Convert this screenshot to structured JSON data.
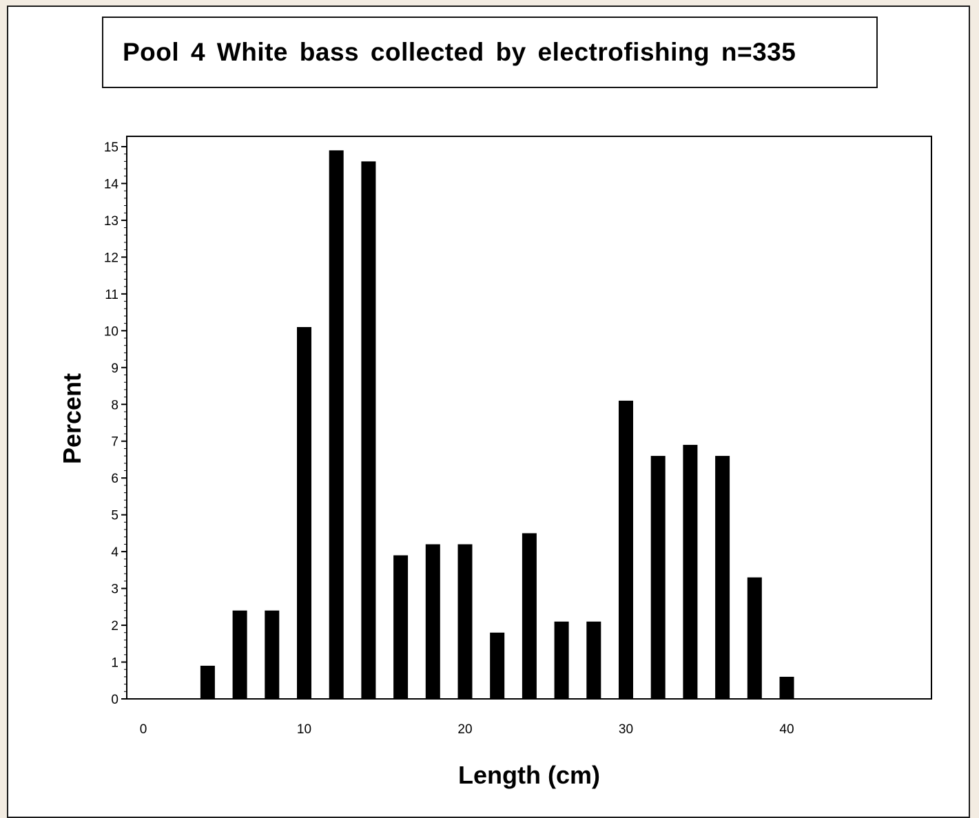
{
  "chart_data": {
    "type": "bar",
    "title": "Pool 4 White bass collected by electrofishing n=335",
    "xlabel": "Length (cm)",
    "ylabel": "Percent",
    "xlim": [
      -1,
      49.5
    ],
    "ylim": [
      0,
      15.3
    ],
    "x_ticks": [
      0,
      10,
      20,
      30,
      40
    ],
    "y_ticks": [
      0,
      1,
      2,
      3,
      4,
      5,
      6,
      7,
      8,
      9,
      10,
      11,
      12,
      13,
      14,
      15
    ],
    "bar_color": "#000000",
    "grid": false,
    "legend": "none",
    "x": [
      4,
      6,
      8,
      10,
      12,
      14,
      16,
      18,
      20,
      22,
      24,
      26,
      28,
      30,
      32,
      34,
      36,
      38,
      40
    ],
    "values": [
      0.9,
      2.4,
      2.4,
      10.1,
      14.9,
      14.6,
      3.9,
      4.2,
      4.2,
      1.8,
      4.5,
      2.1,
      2.1,
      8.1,
      6.6,
      6.9,
      6.6,
      3.3,
      0.6
    ]
  }
}
